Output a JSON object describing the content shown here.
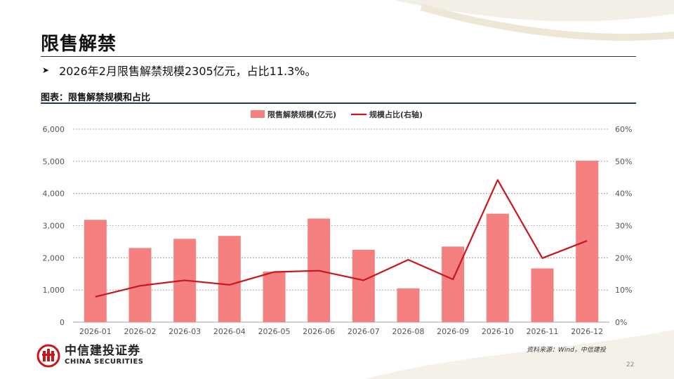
{
  "slide": {
    "title": "限售解禁",
    "bullet": "2026年2月限售解禁规模2305亿元，占比11.3%。",
    "figure_title": "图表：限售解禁规模和占比",
    "source": "资料来源：Wind，中信建投",
    "page_number": "22",
    "logo_cn": "中信建投证券",
    "logo_en": "CHINA SECURITIES"
  },
  "colors": {
    "bar": "#f58080",
    "line": "#c8161d",
    "brand": "#c8161d",
    "rule": "#1f3a5f"
  },
  "chart_data": {
    "type": "bar",
    "categories": [
      "2026-01",
      "2026-02",
      "2026-03",
      "2026-04",
      "2026-05",
      "2026-06",
      "2026-07",
      "2026-08",
      "2026-09",
      "2026-10",
      "2026-11",
      "2026-12"
    ],
    "series": [
      {
        "name": "限售解禁规模(亿元)",
        "type": "bar",
        "axis": "left",
        "values": [
          3180,
          2305,
          2590,
          2680,
          1570,
          3220,
          2250,
          1050,
          2350,
          3370,
          1670,
          5020
        ]
      },
      {
        "name": "规模占比(右轴)",
        "type": "line",
        "axis": "right",
        "values": [
          7.9,
          11.3,
          13.0,
          11.6,
          15.6,
          16.0,
          13.0,
          19.4,
          13.3,
          44.2,
          19.9,
          25.3
        ]
      }
    ],
    "y_left": {
      "min": 0,
      "max": 6000,
      "ticks": [
        "0",
        "1,000",
        "2,000",
        "3,000",
        "4,000",
        "5,000",
        "6,000"
      ]
    },
    "y_right": {
      "min": 0,
      "max": 60,
      "ticks": [
        "0%",
        "10%",
        "20%",
        "30%",
        "40%",
        "50%",
        "60%"
      ]
    },
    "grid": "horizontal dashed",
    "legend": "top-center"
  }
}
